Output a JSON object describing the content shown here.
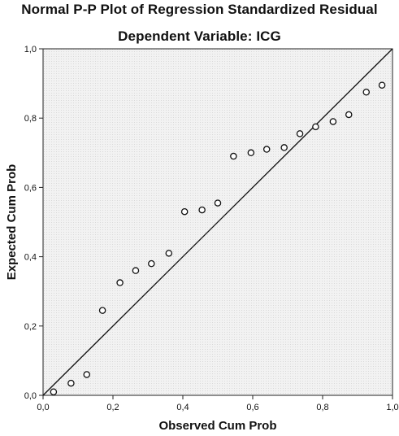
{
  "chart_data": {
    "type": "scatter",
    "title": "Normal P-P Plot of Regression Standardized Residual",
    "subtitle": "Dependent Variable: ICG",
    "xlabel": "Observed Cum Prob",
    "ylabel": "Expected Cum Prob",
    "xlim": [
      0,
      1
    ],
    "ylim": [
      0,
      1
    ],
    "xticks": [
      "0,0",
      "0,2",
      "0,4",
      "0,6",
      "0,8",
      "1,0"
    ],
    "yticks": [
      "0,0",
      "0,2",
      "0,4",
      "0,6",
      "0,8",
      "1,0"
    ],
    "grid": false,
    "reference_line": {
      "from": [
        0,
        0
      ],
      "to": [
        1,
        1
      ]
    },
    "plot_background": "#f0f0f0",
    "marker_color": "#111111",
    "points": [
      {
        "x": 0.03,
        "y": 0.01
      },
      {
        "x": 0.08,
        "y": 0.035
      },
      {
        "x": 0.125,
        "y": 0.06
      },
      {
        "x": 0.17,
        "y": 0.245
      },
      {
        "x": 0.22,
        "y": 0.325
      },
      {
        "x": 0.265,
        "y": 0.36
      },
      {
        "x": 0.31,
        "y": 0.38
      },
      {
        "x": 0.36,
        "y": 0.41
      },
      {
        "x": 0.405,
        "y": 0.53
      },
      {
        "x": 0.455,
        "y": 0.535
      },
      {
        "x": 0.5,
        "y": 0.555
      },
      {
        "x": 0.545,
        "y": 0.69
      },
      {
        "x": 0.595,
        "y": 0.7
      },
      {
        "x": 0.64,
        "y": 0.71
      },
      {
        "x": 0.69,
        "y": 0.715
      },
      {
        "x": 0.735,
        "y": 0.755
      },
      {
        "x": 0.78,
        "y": 0.775
      },
      {
        "x": 0.83,
        "y": 0.79
      },
      {
        "x": 0.875,
        "y": 0.81
      },
      {
        "x": 0.925,
        "y": 0.875
      },
      {
        "x": 0.97,
        "y": 0.895
      }
    ]
  }
}
